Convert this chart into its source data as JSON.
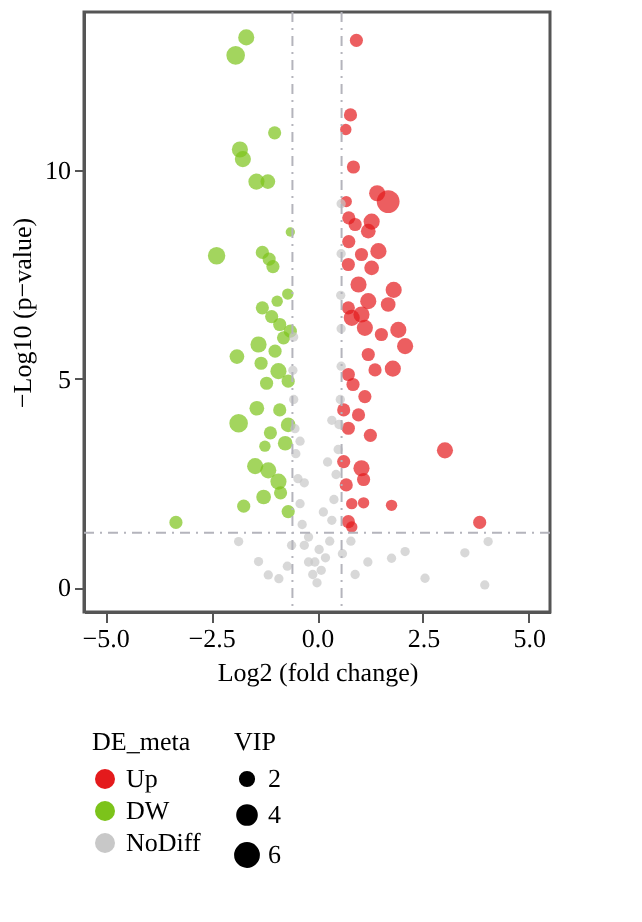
{
  "chart_data": {
    "type": "scatter",
    "xlabel": "Log2 (fold change)",
    "ylabel": "−Log10 (p−value)",
    "legend_title": "DE_meta",
    "annotations": [
      "VIP"
    ],
    "xlim": [
      -5.5,
      5.5
    ],
    "ylim": [
      -0.6,
      13.8
    ],
    "xticks": [
      {
        "value": -5,
        "label": "−5.0"
      },
      {
        "value": -2.5,
        "label": "−2.5"
      },
      {
        "value": 0,
        "label": "0.0"
      },
      {
        "value": 2.5,
        "label": "2.5"
      },
      {
        "value": 5,
        "label": "5.0"
      }
    ],
    "yticks": [
      0,
      5,
      10
    ],
    "grid": false,
    "legend": "bottom",
    "marker": "circle",
    "size_legend": [
      2,
      4,
      6
    ],
    "ref_lines": [
      {
        "axis": "x",
        "value": -0.58,
        "color": "#b4b4bc",
        "line_style": "dashed"
      },
      {
        "axis": "x",
        "value": 0.58,
        "color": "#b4b4bc",
        "line_style": "dashed"
      },
      {
        "axis": "y",
        "value": 1.3,
        "color": "#b4b4bc",
        "line_style": "dashed"
      }
    ],
    "series": [
      {
        "name": "Up",
        "color": "#e41a1c",
        "x": [
          0.93,
          0.79,
          0.68,
          0.86,
          1.68,
          1.42,
          0.69,
          0.75,
          1.29,
          1.21,
          0.9,
          0.75,
          1.45,
          1.05,
          0.74,
          1.29,
          1.81,
          0.98,
          1.21,
          1.68,
          0.74,
          1.05,
          0.82,
          1.13,
          1.92,
          1.52,
          2.08,
          1.21,
          1.79,
          1.37,
          0.74,
          0.85,
          1.13,
          0.63,
          0.98,
          1.26,
          0.74,
          3.02,
          0.63,
          1.05,
          1.1,
          0.69,
          0.82,
          1.1,
          1.76,
          0.74,
          3.84,
          0.82
        ],
        "values": [
          13.12,
          11.33,
          10.98,
          10.08,
          9.25,
          9.45,
          9.25,
          8.86,
          8.77,
          8.54,
          8.7,
          8.29,
          8.06,
          7.98,
          7.74,
          7.66,
          7.13,
          7.26,
          6.86,
          6.78,
          6.7,
          6.54,
          6.46,
          6.22,
          6.17,
          6.06,
          5.78,
          5.58,
          5.24,
          5.21,
          5.1,
          4.86,
          4.57,
          4.25,
          4.13,
          3.64,
          3.81,
          3.28,
          3.01,
          2.85,
          2.58,
          2.45,
          2.0,
          2.02,
          1.96,
          1.57,
          1.55,
          1.44
        ],
        "sizes": [
          2,
          2,
          1.5,
          2,
          6,
          3,
          1.5,
          2,
          3,
          2.5,
          2,
          2,
          3,
          2,
          2,
          2.5,
          3,
          3,
          3,
          2.5,
          2,
          3,
          3,
          3,
          3,
          2,
          3,
          2,
          3,
          2,
          2,
          2,
          2,
          2,
          2,
          2,
          2,
          3,
          2,
          3,
          2,
          2,
          1.5,
          1.5,
          1.5,
          2,
          2,
          1.5
        ]
      },
      {
        "name": "DW",
        "color": "#7cc31a",
        "x": [
          -1.67,
          -1.92,
          -1.0,
          -1.82,
          -1.75,
          -1.43,
          -1.16,
          -0.63,
          -2.37,
          -1.29,
          -1.13,
          -1.04,
          -0.94,
          -0.69,
          -1.29,
          -1.07,
          -0.88,
          -0.63,
          -0.79,
          -1.89,
          -1.38,
          -1.32,
          -0.99,
          -0.91,
          -1.19,
          -0.68,
          -1.42,
          -0.88,
          -1.85,
          -1.1,
          -0.68,
          -1.23,
          -0.75,
          -1.46,
          -1.15,
          -0.91,
          -1.26,
          -0.86,
          -1.73,
          -0.68,
          -3.33
        ],
        "values": [
          13.19,
          12.76,
          10.9,
          10.5,
          10.27,
          9.73,
          9.73,
          8.52,
          7.95,
          8.03,
          7.87,
          7.69,
          6.86,
          7.03,
          6.7,
          6.49,
          6.3,
          6.14,
          5.98,
          5.53,
          5.82,
          5.37,
          5.66,
          5.18,
          4.89,
          4.94,
          4.29,
          4.25,
          3.93,
          3.7,
          3.89,
          3.38,
          3.45,
          2.9,
          2.8,
          2.53,
          2.16,
          2.26,
          1.94,
          1.81,
          1.55
        ],
        "sizes": [
          3,
          4,
          2,
          3,
          3,
          3,
          2.5,
          1,
          3.5,
          2,
          2,
          2,
          1.5,
          1.5,
          2,
          2,
          2,
          2,
          2,
          2.5,
          3,
          2,
          2,
          3,
          2,
          2,
          2.5,
          2,
          4,
          2,
          2.5,
          1.5,
          2.5,
          3,
          3,
          3,
          2.5,
          2,
          2,
          2,
          2
        ]
      },
      {
        "name": "NoDiff",
        "color": "#c8c8c8",
        "x": [
          0.0,
          -0.1,
          0.1,
          -0.2,
          0.2,
          -0.3,
          0.3,
          -0.35,
          0.35,
          -0.4,
          0.4,
          -0.45,
          0.45,
          -0.5,
          0.5,
          -0.52,
          0.52,
          -0.55,
          0.55,
          -0.57,
          0.57,
          -0.55,
          0.57,
          0.56,
          -0.2,
          0.15,
          -0.3,
          0.25,
          -0.4,
          0.35,
          0.6,
          -0.7,
          0.9,
          -0.9,
          1.2,
          -0.6,
          0.8,
          0.05,
          -0.05,
          0.57,
          0.57,
          1.76,
          2.55,
          3.49,
          3.96,
          4.04,
          2.08,
          -1.85,
          -1.15,
          -1.38
        ],
        "values": [
          0.1,
          0.3,
          0.4,
          0.6,
          0.7,
          1.0,
          1.1,
          1.5,
          1.6,
          2.0,
          2.1,
          2.6,
          2.7,
          3.2,
          3.3,
          3.8,
          3.9,
          4.5,
          4.5,
          5.2,
          5.3,
          6.0,
          6.2,
          7.0,
          1.2,
          1.8,
          2.5,
          3.0,
          3.5,
          4.0,
          0.8,
          0.5,
          0.3,
          0.2,
          0.6,
          1.0,
          1.1,
          0.9,
          0.6,
          8.0,
          9.2,
          0.69,
          0.21,
          0.82,
          0.05,
          1.09,
          0.85,
          1.09,
          0.29,
          0.61
        ],
        "sizes": [
          1,
          1,
          1,
          1,
          1,
          1,
          1,
          1,
          1,
          1,
          1,
          1,
          1,
          1,
          1,
          1,
          1,
          1,
          1,
          1,
          1,
          1,
          1,
          1,
          1,
          1,
          1,
          1,
          1,
          1,
          1,
          1,
          1,
          1,
          1,
          1,
          1,
          1,
          1,
          1,
          1,
          1,
          1,
          1,
          1,
          1,
          1,
          1,
          1,
          1
        ]
      }
    ]
  }
}
